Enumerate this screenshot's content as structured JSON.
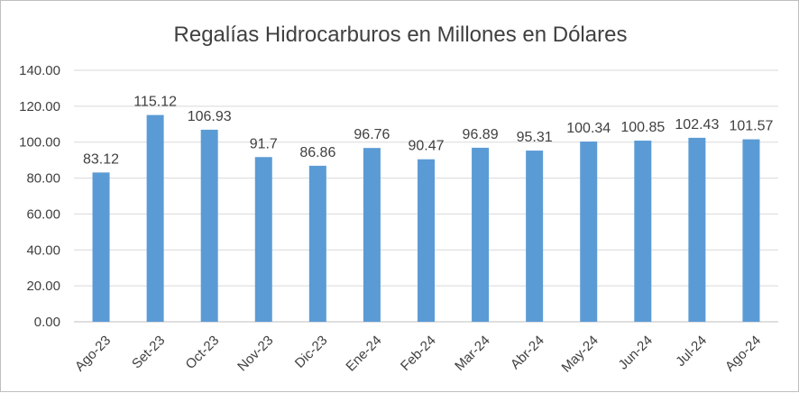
{
  "chart_data": {
    "type": "bar",
    "title": "Regalías Hidrocarburos en Millones en Dólares",
    "xlabel": "",
    "ylabel": "",
    "categories": [
      "Ago-23",
      "Set-23",
      "Oct-23",
      "Nov-23",
      "Dic-23",
      "Ene-24",
      "Feb-24",
      "Mar-24",
      "Abr-24",
      "May-24",
      "Jun-24",
      "Jul-24",
      "Ago-24"
    ],
    "values": [
      83.12,
      115.12,
      106.93,
      91.7,
      86.86,
      96.76,
      90.47,
      96.89,
      95.31,
      100.34,
      100.85,
      102.43,
      101.57
    ],
    "data_labels": [
      "83.12",
      "115.12",
      "106.93",
      "91.7",
      "86.86",
      "96.76",
      "90.47",
      "96.89",
      "95.31",
      "100.34",
      "100.85",
      "102.43",
      "101.57"
    ],
    "ylim": [
      0,
      140
    ],
    "y_ticks": [
      "0.00",
      "20.00",
      "40.00",
      "60.00",
      "80.00",
      "100.00",
      "120.00",
      "140.00"
    ],
    "grid": true,
    "legend": "none",
    "colors": {
      "bar": "#5b9bd5",
      "text": "#404040",
      "grid": "#d9d9d9"
    }
  }
}
